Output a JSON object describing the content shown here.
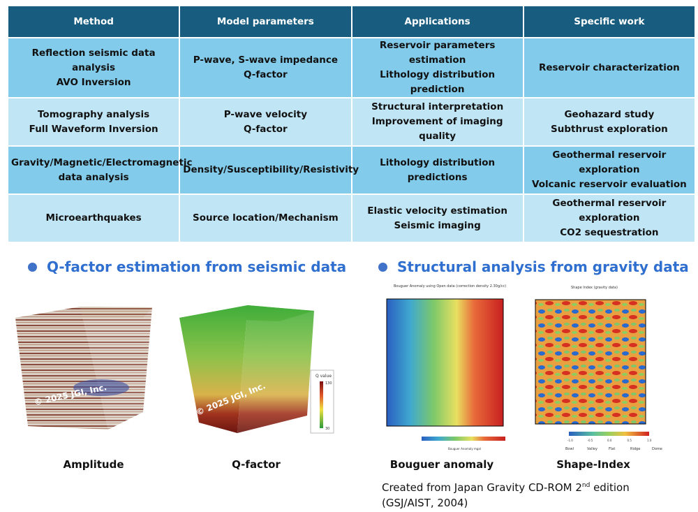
{
  "table": {
    "headers": [
      "Method",
      "Model parameters",
      "Applications",
      "Specific work"
    ],
    "rows": [
      [
        [
          "Reflection seismic data analysis",
          "AVO Inversion"
        ],
        [
          "P-wave, S-wave impedance",
          "Q-factor"
        ],
        [
          "Reservoir parameters estimation",
          "Lithology distribution prediction"
        ],
        [
          "Reservoir characterization"
        ]
      ],
      [
        [
          "Tomography analysis",
          "Full Waveform Inversion"
        ],
        [
          "P-wave velocity",
          "Q-factor"
        ],
        [
          "Structural interpretation",
          "Improvement of imaging quality"
        ],
        [
          "Geohazard study",
          "Subthrust exploration"
        ]
      ],
      [
        [
          "Gravity/Magnetic/Electromagnetic",
          "data analysis"
        ],
        [
          "Density/Susceptibility/Resistivity"
        ],
        [
          "Lithology distribution predictions"
        ],
        [
          "Geothermal reservoir exploration",
          "Volcanic reservoir evaluation"
        ]
      ],
      [
        [
          "Microearthquakes"
        ],
        [
          "Source location/Mechanism"
        ],
        [
          "Elastic velocity estimation",
          "Seismic imaging"
        ],
        [
          "Geothermal reservoir exploration",
          "CO2 sequestration"
        ]
      ]
    ],
    "colors": {
      "header": "#185d80",
      "row_dark": "#82cbea",
      "row_light": "#c0e5f5"
    }
  },
  "sections": {
    "left_heading": "Q-factor estimation from seismic data",
    "right_heading": "Structural analysis from gravity data",
    "copyright": "© 2025 JGI, Inc.",
    "q_legend": {
      "title": "Q value",
      "max": "130",
      "min": "30"
    },
    "bouguer_title": "Bouguer Anomaly using Open data (correction density 2.30g/cc)",
    "bouguer_legend": "Bouguer Anomaly mgal",
    "shape_title": "Shape Index (gravity data)",
    "shape_classes": [
      "Bowl",
      "Valley",
      "Flat",
      "Ridge",
      "Dome"
    ],
    "shape_ticks": [
      "-1.0",
      "-0.5",
      "0.0",
      "0.5",
      "1.0"
    ]
  },
  "captions": {
    "amplitude": "Amplitude",
    "qfactor": "Q-factor",
    "bouguer": "Bouguer anomaly",
    "shape": "Shape-Index"
  },
  "credit": {
    "line1_pre": "Created from Japan Gravity CD-ROM 2",
    "line1_sup": "nd",
    "line1_post": " edition",
    "line2": "(GSJ/AIST, 2004)"
  }
}
